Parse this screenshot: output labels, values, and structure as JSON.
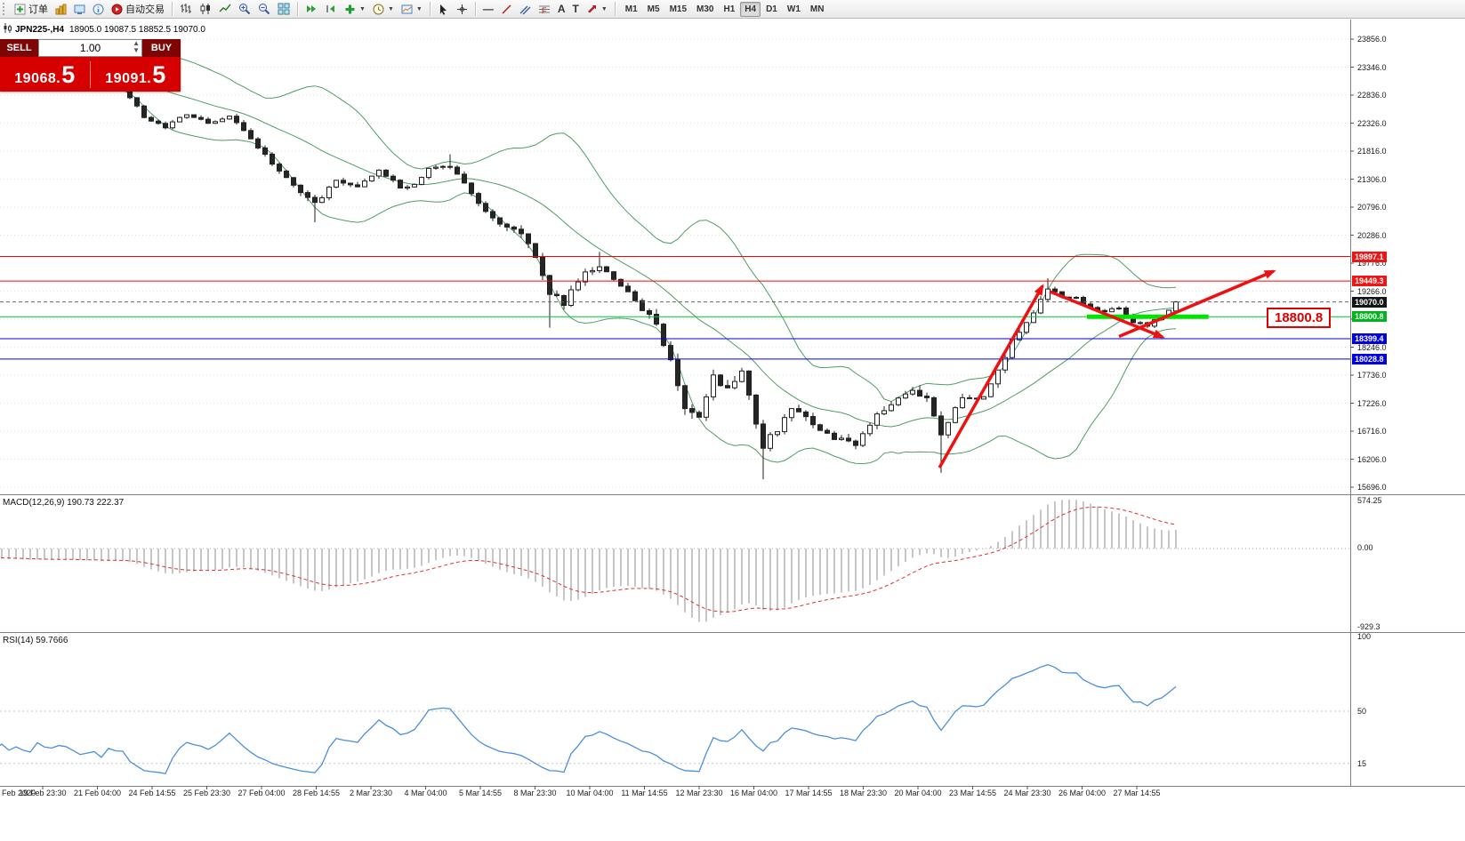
{
  "toolbar": {
    "new_order_label": "订单",
    "autotrading_label": "自动交易",
    "timeframes": [
      "M1",
      "M5",
      "M15",
      "M30",
      "H1",
      "H4",
      "D1",
      "W1",
      "MN"
    ],
    "active_timeframe": "H4"
  },
  "trade_panel": {
    "sell_label": "SELL",
    "buy_label": "BUY",
    "volume": "1.00",
    "sell_price_main": "19068.",
    "sell_price_big": "5",
    "buy_price_main": "19091.",
    "buy_price_big": "5"
  },
  "symbol_header": {
    "symbol": "JPN225-,H4",
    "ohlc": "18905.0 19087.5 18852.5 19070.0"
  },
  "price_axis": {
    "ticks": [
      23856.0,
      23346.0,
      22836.0,
      22326.0,
      21816.0,
      21306.0,
      20796.0,
      20286.0,
      19776.0,
      19266.0,
      18756.0,
      18246.0,
      17736.0,
      17226.0,
      16716.0,
      16206.0,
      15696.0
    ],
    "tags": [
      {
        "price": 19897.1,
        "color": "#f01414"
      },
      {
        "price": 19449.3,
        "color": "#f01414"
      },
      {
        "price": 19070.0,
        "color": "#141414"
      },
      {
        "price": 18800.8,
        "color": "#00b41e"
      },
      {
        "price": 18399.4,
        "color": "#0000dd"
      },
      {
        "price": 18028.8,
        "color": "#0000dd"
      }
    ]
  },
  "time_axis": {
    "labels": [
      "Feb 2020",
      "19 Feb 23:30",
      "21 Feb 04:00",
      "24 Feb 14:55",
      "25 Feb 23:30",
      "27 Feb 04:00",
      "28 Feb 14:55",
      "2 Mar 23:30",
      "4 Mar 04:00",
      "5 Mar 14:55",
      "8 Mar 23:30",
      "10 Mar 04:00",
      "11 Mar 14:55",
      "12 Mar 23:30",
      "16 Mar 04:00",
      "17 Mar 14:55",
      "18 Mar 23:30",
      "20 Mar 04:00",
      "23 Mar 14:55",
      "24 Mar 23:30",
      "26 Mar 04:00",
      "27 Mar 14:55"
    ]
  },
  "indicators": {
    "macd": {
      "label": "MACD(12,26,9) 190.73 222.37",
      "params": [
        12,
        26,
        9
      ],
      "current_macd": 190.73,
      "current_signal": 222.37,
      "axis": [
        "574.25",
        "0.00",
        "-929.3"
      ]
    },
    "rsi": {
      "label": "RSI(14) 59.7666",
      "period": 14,
      "current": 59.7666,
      "axis_values": [
        100,
        50,
        15
      ],
      "levels": [
        50,
        15
      ]
    }
  },
  "chart_data": {
    "type": "candlestick",
    "symbol": "JPN225-",
    "timeframe": "H4",
    "ohlc_current": {
      "open": 18905.0,
      "high": 19087.5,
      "low": 18852.5,
      "close": 19070.0
    },
    "price_range": [
      15696.0,
      23856.0
    ],
    "candle_count": 148,
    "warmup": {
      "bars": 46,
      "start": 23900,
      "end": 22950
    },
    "close_anchors": [
      [
        0,
        22800
      ],
      [
        2,
        22450
      ],
      [
        5,
        22250
      ],
      [
        8,
        22500
      ],
      [
        11,
        22330
      ],
      [
        14,
        22440
      ],
      [
        17,
        22050
      ],
      [
        20,
        21600
      ],
      [
        22,
        21350
      ],
      [
        24,
        21050
      ],
      [
        26,
        20850
      ],
      [
        29,
        21300
      ],
      [
        32,
        21150
      ],
      [
        35,
        21480
      ],
      [
        38,
        21150
      ],
      [
        40,
        21200
      ],
      [
        42,
        21480
      ],
      [
        45,
        21550
      ],
      [
        47,
        21250
      ],
      [
        49,
        20850
      ],
      [
        52,
        20450
      ],
      [
        55,
        20350
      ],
      [
        57,
        19850
      ],
      [
        59,
        19230
      ],
      [
        61,
        19050
      ],
      [
        64,
        19650
      ],
      [
        66,
        19700
      ],
      [
        69,
        19350
      ],
      [
        71,
        19100
      ],
      [
        74,
        18650
      ],
      [
        76,
        17950
      ],
      [
        78,
        17150
      ],
      [
        80,
        16950
      ],
      [
        82,
        17750
      ],
      [
        84,
        17450
      ],
      [
        86,
        17800
      ],
      [
        88,
        16900
      ],
      [
        89,
        16450
      ],
      [
        91,
        16750
      ],
      [
        93,
        17100
      ],
      [
        96,
        16850
      ],
      [
        99,
        16600
      ],
      [
        102,
        16500
      ],
      [
        105,
        17000
      ],
      [
        107,
        17200
      ],
      [
        110,
        17450
      ],
      [
        112,
        17300
      ],
      [
        114,
        16700
      ],
      [
        117,
        17300
      ],
      [
        120,
        17350
      ],
      [
        122,
        17800
      ],
      [
        124,
        18350
      ],
      [
        127,
        18900
      ],
      [
        129,
        19300
      ],
      [
        131,
        19150
      ],
      [
        133,
        19150
      ],
      [
        135,
        18950
      ],
      [
        137,
        18900
      ],
      [
        139,
        18950
      ],
      [
        141,
        18700
      ],
      [
        143,
        18650
      ],
      [
        145,
        18800
      ],
      [
        147,
        19070
      ]
    ],
    "vol_anchors": [
      [
        0,
        100
      ],
      [
        10,
        90
      ],
      [
        20,
        115
      ],
      [
        26,
        160
      ],
      [
        30,
        120
      ],
      [
        45,
        110
      ],
      [
        50,
        150
      ],
      [
        57,
        210
      ],
      [
        60,
        230
      ],
      [
        64,
        170
      ],
      [
        70,
        150
      ],
      [
        76,
        270
      ],
      [
        80,
        270
      ],
      [
        84,
        240
      ],
      [
        88,
        260
      ],
      [
        91,
        220
      ],
      [
        100,
        190
      ],
      [
        108,
        175
      ],
      [
        113,
        260
      ],
      [
        118,
        175
      ],
      [
        124,
        165
      ],
      [
        129,
        145
      ],
      [
        133,
        95
      ],
      [
        140,
        90
      ],
      [
        147,
        85
      ]
    ],
    "low_spikes": [
      [
        26,
        20520
      ],
      [
        59,
        18600
      ],
      [
        89,
        15840
      ],
      [
        114,
        15960
      ]
    ],
    "high_spikes": [
      [
        45,
        21760
      ],
      [
        66,
        19980
      ],
      [
        129,
        19500
      ]
    ],
    "bollinger": {
      "period": 20,
      "deviation": 2
    },
    "hlines": [
      {
        "price": 19897.1,
        "color": "#ff0000"
      },
      {
        "price": 19449.3,
        "color": "#ff0000"
      },
      {
        "price": 19070.0,
        "color": "#666666",
        "dash": true
      },
      {
        "price": 18800.8,
        "color": "#00c832"
      },
      {
        "price": 18399.4,
        "color": "#0000e0"
      },
      {
        "price": 18028.8,
        "color": "#0000e0"
      }
    ],
    "highlight_segment": {
      "price": 18800.8,
      "from": 0.805,
      "to": 0.895,
      "color": "#00e400"
    },
    "trend_arrows": [
      {
        "from": [
          0.6957,
          16050
        ],
        "to": [
          0.7721,
          19360
        ]
      },
      {
        "from": [
          0.7774,
          19260
        ],
        "to": [
          0.861,
          18430
        ]
      },
      {
        "from": [
          0.8287,
          18440
        ],
        "to": [
          0.9433,
          19630
        ]
      }
    ],
    "price_label_callout": {
      "text": "18800.8",
      "color": "#e00000"
    }
  },
  "colors": {
    "grid": "#e3e3e3",
    "band": "#4d9e63",
    "candle_up": "#ffffff",
    "candle_down": "#262626",
    "candle_outline": "#1f1f1f",
    "macd_hist": "#c6c6c6",
    "macd_signal": "#e03030",
    "rsi_line": "#4a90d9",
    "trend": "#ee1111",
    "axis_text": "#1a1a1a"
  }
}
